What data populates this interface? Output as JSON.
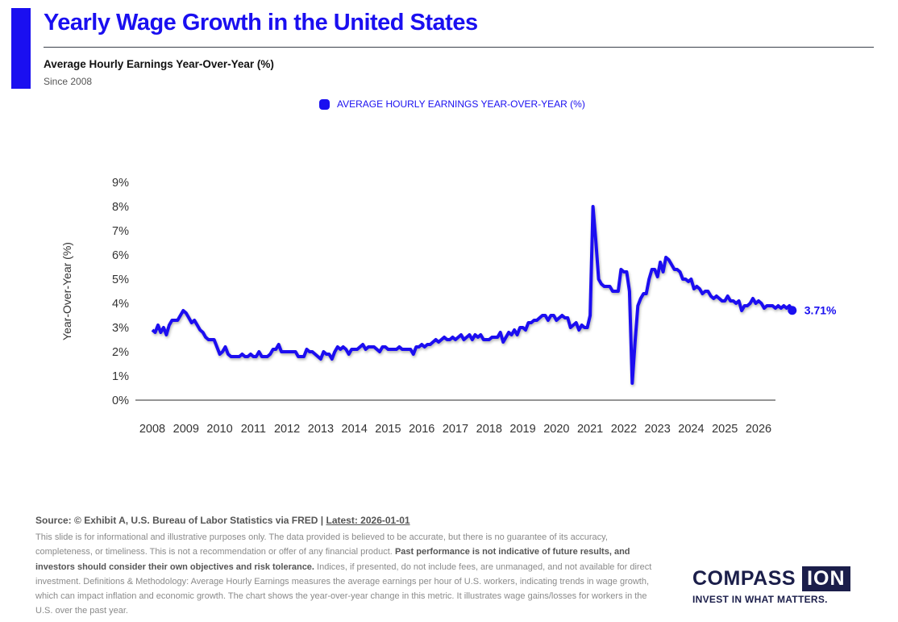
{
  "header": {
    "title": "Yearly Wage Growth in the United States",
    "subtitle": "Average Hourly Earnings Year-Over-Year (%)",
    "since": "Since 2008",
    "accent_color": "#1a0ff0"
  },
  "legend": {
    "label": "AVERAGE HOURLY EARNINGS YEAR-OVER-YEAR (%)"
  },
  "chart_data": {
    "type": "line",
    "title": "Yearly Wage Growth in the United States",
    "subtitle": "Average Hourly Earnings Year-Over-Year (%)",
    "xlabel": "",
    "ylabel": "Year-Over-Year (%)",
    "ylim": [
      0,
      9
    ],
    "xlim": [
      2008,
      2026
    ],
    "y_ticks": [
      "0%",
      "1%",
      "2%",
      "3%",
      "4%",
      "5%",
      "6%",
      "7%",
      "8%",
      "9%"
    ],
    "x_ticks": [
      "2008",
      "2009",
      "2010",
      "2011",
      "2012",
      "2013",
      "2014",
      "2015",
      "2016",
      "2017",
      "2018",
      "2019",
      "2020",
      "2021",
      "2022",
      "2023",
      "2024",
      "2025",
      "2026"
    ],
    "grid": false,
    "legend_position": "top-center",
    "end_label": "3.71%",
    "series": [
      {
        "name": "AVERAGE HOURLY EARNINGS YEAR-OVER-YEAR (%)",
        "color": "#1a0ff0",
        "start": "2008-01",
        "frequency": "monthly",
        "values": [
          2.9,
          2.8,
          3.1,
          2.8,
          3.0,
          2.7,
          3.1,
          3.3,
          3.3,
          3.3,
          3.5,
          3.7,
          3.6,
          3.4,
          3.2,
          3.3,
          3.1,
          2.9,
          2.8,
          2.6,
          2.5,
          2.5,
          2.5,
          2.2,
          1.9,
          2.0,
          2.2,
          1.9,
          1.8,
          1.8,
          1.8,
          1.8,
          1.9,
          1.8,
          1.8,
          1.9,
          1.8,
          1.8,
          2.0,
          1.8,
          1.8,
          1.8,
          1.9,
          2.1,
          2.1,
          2.3,
          2.0,
          2.0,
          2.0,
          2.0,
          2.0,
          2.0,
          1.8,
          1.8,
          1.8,
          2.1,
          2.0,
          2.0,
          1.9,
          1.8,
          1.7,
          2.0,
          1.9,
          1.9,
          1.7,
          2.0,
          2.2,
          2.1,
          2.2,
          2.1,
          1.9,
          2.1,
          2.1,
          2.1,
          2.2,
          2.3,
          2.1,
          2.2,
          2.2,
          2.2,
          2.1,
          2.0,
          2.2,
          2.2,
          2.1,
          2.1,
          2.1,
          2.1,
          2.2,
          2.1,
          2.1,
          2.1,
          2.1,
          1.9,
          2.2,
          2.2,
          2.3,
          2.2,
          2.3,
          2.3,
          2.4,
          2.5,
          2.4,
          2.5,
          2.6,
          2.5,
          2.5,
          2.6,
          2.5,
          2.6,
          2.7,
          2.5,
          2.6,
          2.7,
          2.5,
          2.7,
          2.6,
          2.7,
          2.5,
          2.5,
          2.5,
          2.6,
          2.6,
          2.6,
          2.8,
          2.4,
          2.6,
          2.8,
          2.7,
          2.9,
          2.7,
          3.0,
          3.0,
          2.9,
          3.2,
          3.2,
          3.3,
          3.3,
          3.4,
          3.5,
          3.5,
          3.3,
          3.5,
          3.5,
          3.3,
          3.4,
          3.5,
          3.4,
          3.4,
          3.0,
          3.1,
          3.2,
          2.9,
          3.1,
          3.0,
          3.0,
          3.5,
          8.0,
          6.6,
          5.0,
          4.8,
          4.7,
          4.7,
          4.7,
          4.5,
          4.5,
          4.5,
          5.4,
          5.3,
          5.3,
          4.5,
          0.7,
          2.4,
          3.9,
          4.2,
          4.4,
          4.4,
          5.0,
          5.4,
          5.4,
          5.1,
          5.7,
          5.3,
          5.9,
          5.8,
          5.6,
          5.4,
          5.4,
          5.3,
          5.0,
          5.0,
          4.9,
          5.0,
          4.6,
          4.7,
          4.6,
          4.4,
          4.5,
          4.5,
          4.3,
          4.2,
          4.3,
          4.2,
          4.1,
          4.1,
          4.3,
          4.1,
          4.1,
          4.0,
          4.1,
          3.7,
          3.9,
          3.9,
          4.0,
          4.2,
          4.0,
          4.1,
          4.0,
          3.8,
          3.9,
          3.9,
          3.9,
          3.8,
          3.9,
          3.8,
          3.9,
          3.8,
          3.9,
          3.71
        ]
      }
    ]
  },
  "footer": {
    "source_prefix": "Source: © Exhibit A, U.S. Bureau of Labor Statistics via FRED | ",
    "latest": "Latest: 2026-01-01",
    "disclaimer_1": "This slide is for informational and illustrative purposes only. The data provided is believed to be accurate, but there is no guarantee of its accuracy, completeness, or timeliness. This is not a recommendation or offer of any financial product. ",
    "disclaimer_bold": "Past performance is not indicative of future results, and investors should consider their own objectives and risk tolerance.",
    "disclaimer_2": " Indices, if presented, do not include fees, are unmanaged, and not available for direct investment. Definitions & Methodology: Average Hourly Earnings measures the average earnings per hour of U.S. workers, indicating trends in wage growth, which can impact inflation and economic growth. The chart shows the year-over-year change in this metric. It illustrates wage gains/losses for workers in the U.S. over the past year."
  },
  "logo": {
    "word": "COMPASS",
    "box": "ION",
    "tagline": "INVEST IN WHAT MATTERS."
  }
}
